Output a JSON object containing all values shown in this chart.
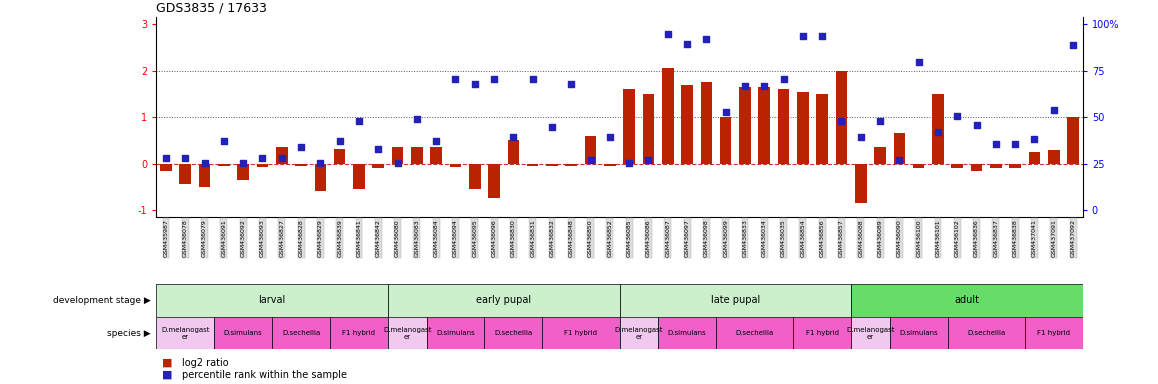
{
  "title": "GDS3835 / 17633",
  "samples": [
    "GSM435987",
    "GSM436078",
    "GSM436079",
    "GSM436091",
    "GSM436092",
    "GSM436093",
    "GSM436827",
    "GSM436828",
    "GSM436829",
    "GSM436839",
    "GSM436841",
    "GSM436842",
    "GSM436080",
    "GSM436083",
    "GSM436084",
    "GSM436094",
    "GSM436095",
    "GSM436096",
    "GSM436830",
    "GSM436831",
    "GSM436832",
    "GSM436848",
    "GSM436850",
    "GSM436852",
    "GSM436085",
    "GSM436086",
    "GSM436087",
    "GSM436097",
    "GSM436098",
    "GSM436099",
    "GSM436833",
    "GSM436034",
    "GSM436035",
    "GSM436854",
    "GSM436856",
    "GSM436857",
    "GSM436088",
    "GSM436089",
    "GSM436090",
    "GSM436100",
    "GSM436101",
    "GSM436102",
    "GSM436836",
    "GSM436837",
    "GSM436838",
    "GSM437041",
    "GSM437091",
    "GSM437092"
  ],
  "log2ratio": [
    -0.15,
    -0.45,
    -0.5,
    -0.05,
    -0.35,
    -0.08,
    0.35,
    -0.05,
    -0.6,
    0.32,
    -0.55,
    -0.1,
    0.35,
    0.35,
    0.35,
    -0.08,
    -0.55,
    -0.75,
    0.5,
    -0.05,
    -0.05,
    -0.05,
    0.6,
    -0.05,
    1.6,
    1.5,
    2.05,
    1.7,
    1.75,
    1.0,
    1.65,
    1.65,
    1.6,
    1.55,
    1.5,
    2.0,
    -0.85,
    0.35,
    0.65,
    -0.1,
    1.5,
    -0.1,
    -0.15,
    -0.1,
    -0.1,
    0.25,
    0.3,
    1.0
  ],
  "percentile": [
    0.12,
    0.12,
    0.02,
    0.48,
    0.02,
    0.12,
    0.12,
    0.35,
    0.02,
    0.48,
    0.92,
    0.32,
    0.02,
    0.95,
    0.48,
    1.82,
    1.72,
    1.82,
    0.58,
    1.82,
    0.78,
    1.72,
    0.08,
    0.58,
    0.02,
    0.08,
    2.78,
    2.58,
    2.68,
    1.12,
    1.68,
    1.68,
    1.82,
    2.75,
    2.75,
    0.92,
    0.58,
    0.92,
    0.08,
    2.18,
    0.68,
    1.02,
    0.82,
    0.42,
    0.42,
    0.52,
    1.15,
    2.55
  ],
  "dev_stages": [
    {
      "label": "larval",
      "start": 0,
      "end": 12,
      "color": "#ccf0cc"
    },
    {
      "label": "early pupal",
      "start": 12,
      "end": 24,
      "color": "#ccf0cc"
    },
    {
      "label": "late pupal",
      "start": 24,
      "end": 36,
      "color": "#ccf0cc"
    },
    {
      "label": "adult",
      "start": 36,
      "end": 48,
      "color": "#66dd66"
    }
  ],
  "species_groups": [
    {
      "label": "D.melanogast\ner",
      "start": 0,
      "end": 3,
      "color": "#f0c8f0"
    },
    {
      "label": "D.simulans",
      "start": 3,
      "end": 6,
      "color": "#f060c8"
    },
    {
      "label": "D.sechellia",
      "start": 6,
      "end": 9,
      "color": "#f060c8"
    },
    {
      "label": "F1 hybrid",
      "start": 9,
      "end": 12,
      "color": "#f060c8"
    },
    {
      "label": "D.melanogast\ner",
      "start": 12,
      "end": 14,
      "color": "#f0c8f0"
    },
    {
      "label": "D.simulans",
      "start": 14,
      "end": 17,
      "color": "#f060c8"
    },
    {
      "label": "D.sechellia",
      "start": 17,
      "end": 20,
      "color": "#f060c8"
    },
    {
      "label": "F1 hybrid",
      "start": 20,
      "end": 24,
      "color": "#f060c8"
    },
    {
      "label": "D.melanogast\ner",
      "start": 24,
      "end": 26,
      "color": "#f0c8f0"
    },
    {
      "label": "D.simulans",
      "start": 26,
      "end": 29,
      "color": "#f060c8"
    },
    {
      "label": "D.sechellia",
      "start": 29,
      "end": 33,
      "color": "#f060c8"
    },
    {
      "label": "F1 hybrid",
      "start": 33,
      "end": 36,
      "color": "#f060c8"
    },
    {
      "label": "D.melanogast\ner",
      "start": 36,
      "end": 38,
      "color": "#f0c8f0"
    },
    {
      "label": "D.simulans",
      "start": 38,
      "end": 41,
      "color": "#f060c8"
    },
    {
      "label": "D.sechellia",
      "start": 41,
      "end": 45,
      "color": "#f060c8"
    },
    {
      "label": "F1 hybrid",
      "start": 45,
      "end": 48,
      "color": "#f060c8"
    }
  ],
  "ylim": [
    -1.15,
    3.15
  ],
  "yticks_left": [
    -1,
    0,
    1,
    2,
    3
  ],
  "right_ticks_pos": [
    -1,
    0,
    1,
    2,
    3
  ],
  "right_ticks_labels": [
    "0",
    "25",
    "50",
    "75",
    "100%"
  ],
  "bar_color": "#bb2200",
  "dot_color": "#2222bb",
  "hline_color": "#cc3333",
  "dotted_line_color": "#555555",
  "bg_color": "#ffffff",
  "title_color": "#000000",
  "tick_bg_color": "#dddddd"
}
